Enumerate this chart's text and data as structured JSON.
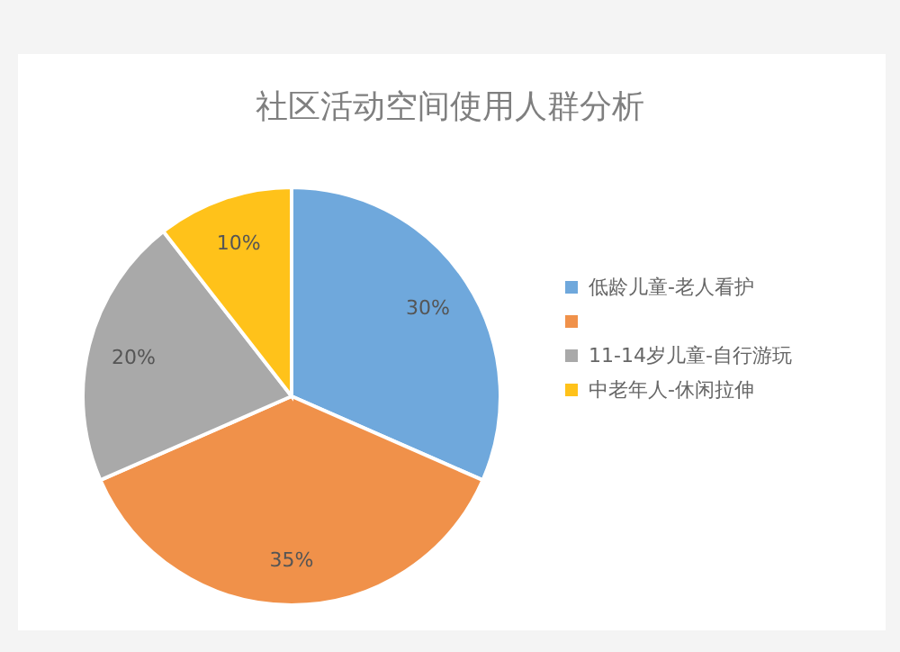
{
  "chart_data": {
    "type": "pie",
    "title": "社区活动空间使用人群分析",
    "categories": [
      "低龄儿童-老人看护",
      null,
      "11-14岁儿童-自行游玩",
      "中老年人-休闲拉伸"
    ],
    "values": [
      30,
      35,
      20,
      10
    ],
    "colors": [
      "#6fa8dc",
      "#f0914a",
      "#a9a9a9",
      "#ffc21a"
    ],
    "value_labels": [
      "30%",
      "35%",
      "20%",
      "10%"
    ],
    "legend": "right"
  }
}
